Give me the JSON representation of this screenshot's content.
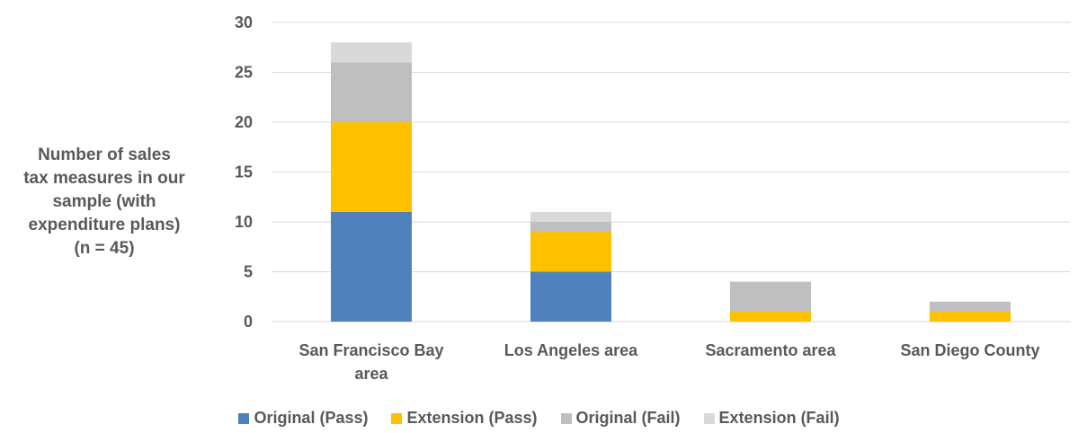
{
  "chart_data": {
    "type": "bar",
    "stacked": true,
    "categories": [
      [
        "San Francisco Bay",
        "area"
      ],
      [
        "Los Angeles area"
      ],
      [
        "Sacramento area"
      ],
      [
        "San Diego County"
      ]
    ],
    "series": [
      {
        "name": "Original (Pass)",
        "color": "#4F81BD",
        "values": [
          11,
          5,
          0,
          0
        ]
      },
      {
        "name": "Extension (Pass)",
        "color": "#FFC000",
        "values": [
          9,
          4,
          1,
          1
        ]
      },
      {
        "name": "Original (Fail)",
        "color": "#BFBFBF",
        "values": [
          6,
          1,
          3,
          1
        ]
      },
      {
        "name": "Extension (Fail)",
        "color": "#D9D9D9",
        "values": [
          2,
          1,
          0,
          0
        ]
      }
    ],
    "ylabel": "Number of sales\ntax measures in our\nsample (with\nexpenditure plans)\n(n = 45)",
    "ylim": [
      0,
      30
    ],
    "yticks": [
      0,
      5,
      10,
      15,
      20,
      25,
      30
    ],
    "grid": true,
    "legend_position": "bottom"
  }
}
